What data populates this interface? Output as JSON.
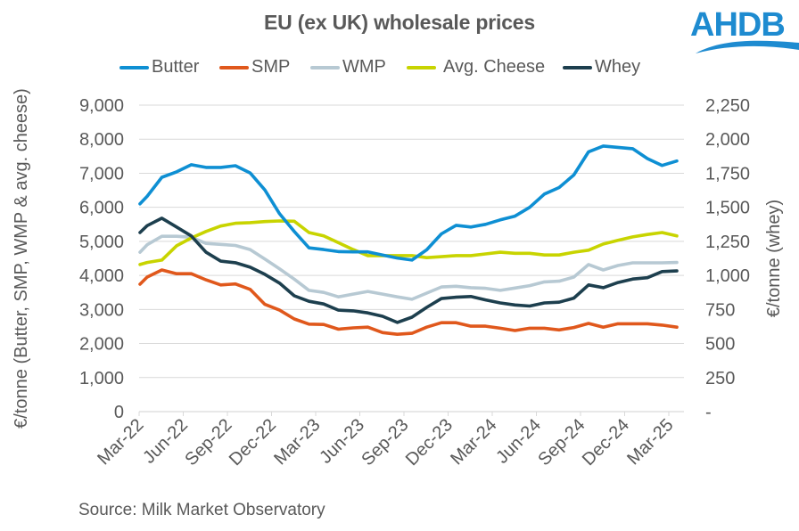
{
  "header": {
    "title": "EU (ex UK) wholesale prices",
    "logo_text": "AHDB"
  },
  "footer": {
    "source": "Source: Milk Market Observatory"
  },
  "chart_data": {
    "type": "line",
    "title": "EU (ex UK) wholesale prices",
    "xlabel": "",
    "ylabel": "€/tonne (Butter, SMP, WMP & avg. cheese)",
    "y2label": "€/tonne (whey)",
    "ylim": [
      0,
      9000
    ],
    "y2lim": [
      0,
      2250
    ],
    "yticks": [
      "0",
      "1,000",
      "2,000",
      "3,000",
      "4,000",
      "5,000",
      "6,000",
      "7,000",
      "8,000",
      "9,000"
    ],
    "y2ticks": [
      "-",
      "250",
      "500",
      "750",
      "1,000",
      "1,250",
      "1,500",
      "1,750",
      "2,000",
      "2,250"
    ],
    "xticks": [
      "Mar-22",
      "Jun-22",
      "Sep-22",
      "Dec-22",
      "Mar-23",
      "Jun-23",
      "Sep-23",
      "Dec-23",
      "Mar-24",
      "Jun-24",
      "Sep-24",
      "Dec-24",
      "Mar-25"
    ],
    "x": [
      "Mar-22",
      "Mar-22b",
      "Apr-22",
      "May-22",
      "Jun-22",
      "Jul-22",
      "Aug-22",
      "Sep-22",
      "Oct-22",
      "Nov-22",
      "Dec-22",
      "Jan-23",
      "Feb-23",
      "Mar-23",
      "Apr-23",
      "May-23",
      "Jun-23",
      "Jul-23",
      "Aug-23",
      "Sep-23",
      "Oct-23",
      "Nov-23",
      "Dec-23",
      "Jan-24",
      "Feb-24",
      "Mar-24",
      "Apr-24",
      "May-24",
      "Jun-24",
      "Jul-24",
      "Aug-24",
      "Sep-24",
      "Oct-24",
      "Nov-24",
      "Dec-24",
      "Jan-25",
      "Feb-25",
      "Mar-25"
    ],
    "gridlines": true,
    "legend_position": "top",
    "series": [
      {
        "name": "Butter",
        "axis": "left",
        "color": "#0E8FD3",
        "values": [
          6100,
          6320,
          6880,
          7040,
          7250,
          7170,
          7170,
          7220,
          7010,
          6510,
          5810,
          5290,
          4810,
          4760,
          4700,
          4690,
          4690,
          4600,
          4510,
          4450,
          4750,
          5220,
          5470,
          5420,
          5500,
          5630,
          5740,
          6000,
          6390,
          6580,
          6950,
          7630,
          7800,
          7760,
          7720,
          7430,
          7230,
          7360
        ]
      },
      {
        "name": "SMP",
        "axis": "left",
        "color": "#E0581C",
        "values": [
          3740,
          3950,
          4160,
          4050,
          4050,
          3870,
          3720,
          3750,
          3590,
          3150,
          2980,
          2720,
          2570,
          2560,
          2420,
          2460,
          2480,
          2320,
          2270,
          2300,
          2480,
          2610,
          2610,
          2510,
          2510,
          2450,
          2380,
          2450,
          2450,
          2400,
          2470,
          2590,
          2480,
          2580,
          2580,
          2580,
          2540,
          2480
        ]
      },
      {
        "name": "WMP",
        "axis": "left",
        "color": "#B7C9D3",
        "values": [
          4680,
          4900,
          5150,
          5150,
          5120,
          4940,
          4910,
          4880,
          4760,
          4480,
          4190,
          3890,
          3560,
          3500,
          3370,
          3450,
          3530,
          3450,
          3370,
          3300,
          3480,
          3660,
          3680,
          3640,
          3620,
          3560,
          3630,
          3700,
          3810,
          3830,
          3950,
          4320,
          4160,
          4290,
          4370,
          4370,
          4370,
          4380
        ]
      },
      {
        "name": "Avg. Cheese",
        "axis": "left",
        "color": "#C8D400",
        "values": [
          4320,
          4380,
          4450,
          4870,
          5100,
          5290,
          5450,
          5530,
          5550,
          5580,
          5600,
          5590,
          5260,
          5160,
          4960,
          4760,
          4580,
          4580,
          4580,
          4580,
          4520,
          4550,
          4580,
          4580,
          4630,
          4680,
          4650,
          4650,
          4600,
          4600,
          4680,
          4740,
          4920,
          5030,
          5130,
          5200,
          5260,
          5160
        ]
      },
      {
        "name": "Whey",
        "axis": "right",
        "color": "#1D3F4E",
        "values": [
          1315,
          1365,
          1420,
          1355,
          1290,
          1170,
          1105,
          1093,
          1060,
          1008,
          943,
          850,
          810,
          790,
          745,
          740,
          725,
          700,
          655,
          693,
          765,
          830,
          840,
          845,
          820,
          798,
          783,
          775,
          798,
          803,
          833,
          930,
          910,
          948,
          973,
          983,
          1028,
          1033
        ]
      }
    ]
  }
}
